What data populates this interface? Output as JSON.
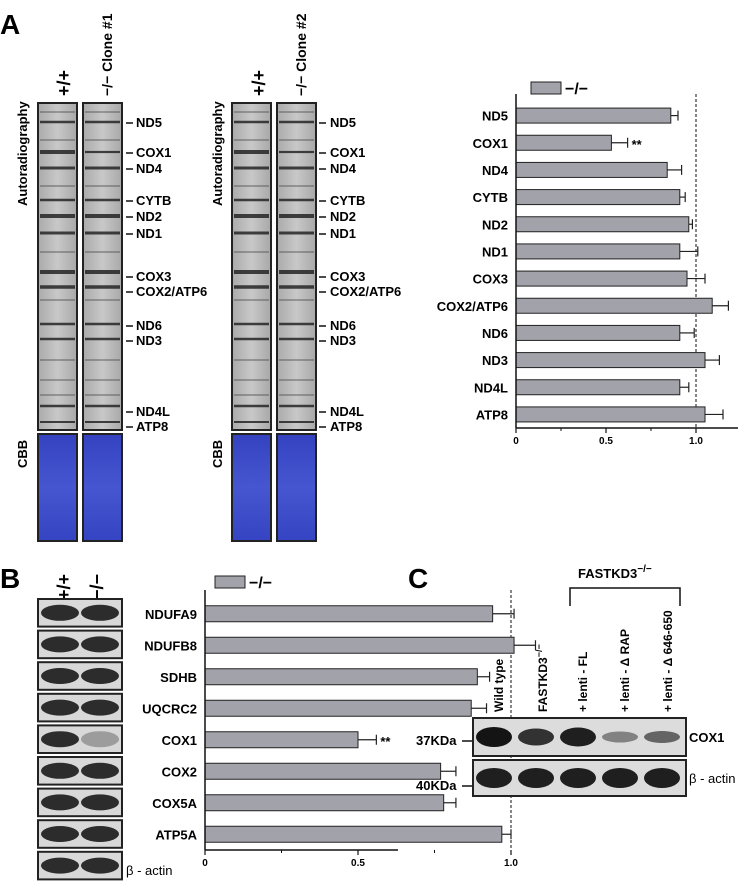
{
  "figure": {
    "panel_labels": [
      "A",
      "B",
      "C"
    ],
    "panel_a": {
      "blot1": {
        "lane_labels": [
          "+/+",
          "−/−  Clone #1"
        ]
      },
      "blot2": {
        "lane_labels": [
          "+/+",
          "−/−  Clone #2"
        ]
      },
      "side_label": "Autoradiography",
      "cbb_label": "CBB",
      "band_labels": [
        "ND5",
        "COX1",
        "ND4",
        "CYTB",
        "ND2",
        "ND1",
        "COX3",
        "COX2/ATP6",
        "ND6",
        "ND3",
        "ND4L",
        "ATP8"
      ]
    },
    "panel_b": {
      "lane_labels": [
        "+/+",
        "−/−"
      ],
      "actin_label": "β - actin"
    },
    "panel_c": {
      "group_label": "FASTKD3",
      "group_superscript": "−/−",
      "lane_labels": [
        "Wild type",
        "FASTKD3",
        "+ lenti - FL",
        "+ lenti - Δ RAP",
        "+ lenti - Δ 646-650"
      ],
      "lane2_superscript": "−/−",
      "mw_labels": [
        "37KDa",
        "40KDa"
      ],
      "row_labels": [
        "COX1",
        "β - actin"
      ]
    }
  },
  "colors": {
    "bar_fill": "#a2a2aa",
    "cbb_blue": "#3a48c4",
    "band_dark": "#222222"
  },
  "chart_data": [
    {
      "type": "bar",
      "orientation": "horizontal",
      "categories": [
        "ND5",
        "COX1",
        "ND4",
        "CYTB",
        "ND2",
        "ND1",
        "COX3",
        "COX2/ATP6",
        "ND6",
        "ND3",
        "ND4L",
        "ATP8"
      ],
      "series": [
        {
          "name": "−/−",
          "values": [
            0.86,
            0.53,
            0.84,
            0.91,
            0.96,
            0.91,
            0.95,
            1.09,
            0.91,
            1.05,
            0.91,
            1.05
          ],
          "errors": [
            0.04,
            0.09,
            0.08,
            0.03,
            0.02,
            0.1,
            0.1,
            0.09,
            0.08,
            0.08,
            0.05,
            0.1
          ]
        }
      ],
      "annotations": [
        {
          "category": "COX1",
          "text": "**"
        }
      ],
      "xticks": [
        "0",
        "0.5",
        "1.0"
      ],
      "xlim": [
        0,
        1.25
      ],
      "reference_line": 1.0
    },
    {
      "type": "bar",
      "orientation": "horizontal",
      "categories": [
        "NDUFA9",
        "NDUFB8",
        "SDHB",
        "UQCRC2",
        "COX1",
        "COX2",
        "COX5A",
        "ATP5A"
      ],
      "series": [
        {
          "name": "−/−",
          "values": [
            0.94,
            1.01,
            0.89,
            0.87,
            0.5,
            0.77,
            0.78,
            0.97
          ],
          "errors": [
            0.07,
            0.07,
            0.04,
            0.05,
            0.06,
            0.05,
            0.04,
            0.03
          ]
        }
      ],
      "annotations": [
        {
          "category": "COX1",
          "text": "**"
        }
      ],
      "xticks": [
        "0",
        "0.5",
        "1.0"
      ],
      "xlim": [
        0,
        1.25
      ],
      "reference_line": 1.0
    }
  ]
}
